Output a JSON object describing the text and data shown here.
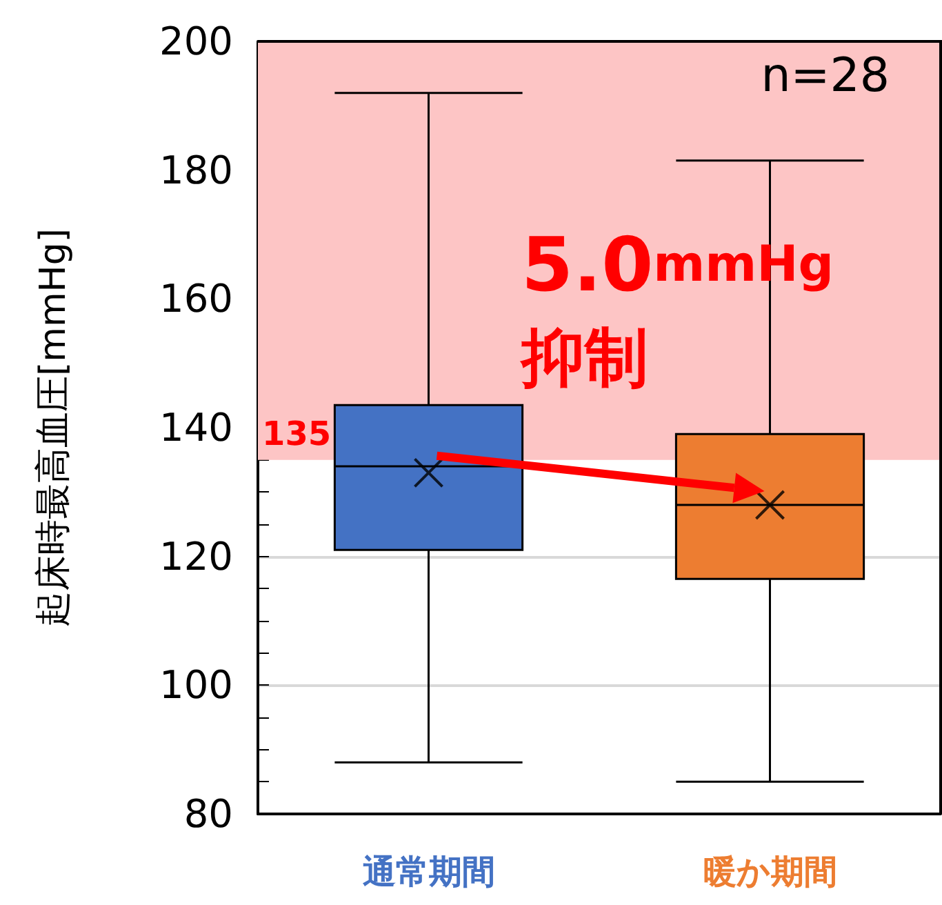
{
  "chart_data": {
    "type": "box",
    "ylabel": "起床時最高血圧[mmHg]",
    "categories": [
      "通常期間",
      "暖か期間"
    ],
    "colors": [
      "#4472c4",
      "#ed7d31"
    ],
    "boxes": [
      {
        "low": 88,
        "q1": 121,
        "median": 134,
        "q3": 143.5,
        "high": 192,
        "mean": 133
      },
      {
        "low": 85,
        "q1": 116.5,
        "median": 128,
        "q3": 139,
        "high": 181.5,
        "mean": 128
      }
    ],
    "ylim": [
      80,
      200
    ],
    "yticks": [
      80,
      100,
      120,
      140,
      160,
      180,
      200
    ],
    "grid": "y",
    "marker": "cross",
    "bands": [
      {
        "axis": "y",
        "from": 135,
        "to": 200,
        "label": "135",
        "color": "#fdc5c5"
      }
    ],
    "annotations": [
      "n=28",
      "5.0mmHg",
      "抑制"
    ]
  }
}
